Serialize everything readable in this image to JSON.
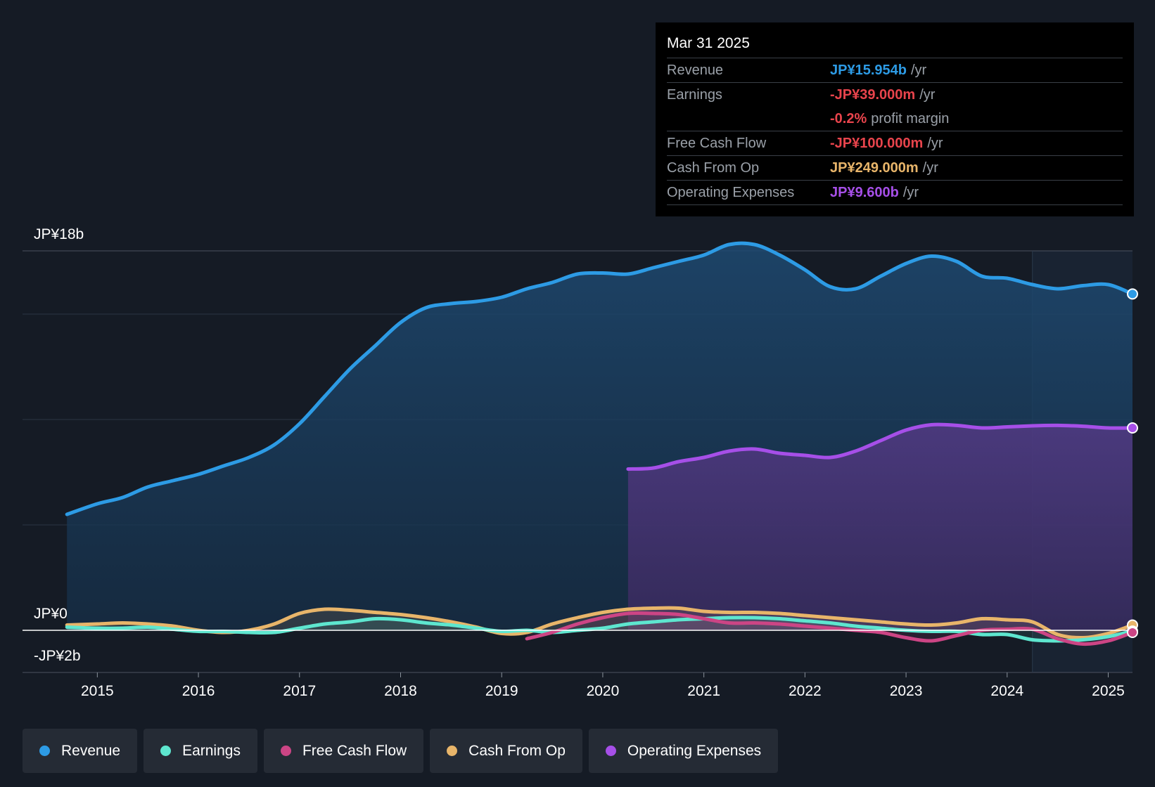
{
  "tooltip": {
    "date": "Mar 31 2025",
    "rows": [
      {
        "label": "Revenue",
        "value": "JP¥15.954b",
        "unit": "/yr",
        "color": "#2d9be5"
      },
      {
        "label": "Earnings",
        "value": "-JP¥39.000m",
        "unit": "/yr",
        "color": "#e8444c"
      },
      {
        "label": "",
        "value": "-0.2%",
        "unit": "profit margin",
        "color": "#e8444c"
      },
      {
        "label": "Free Cash Flow",
        "value": "-JP¥100.000m",
        "unit": "/yr",
        "color": "#e8444c"
      },
      {
        "label": "Cash From Op",
        "value": "JP¥249.000m",
        "unit": "/yr",
        "color": "#e8b56a"
      },
      {
        "label": "Operating Expenses",
        "value": "JP¥9.600b",
        "unit": "/yr",
        "color": "#a64fe8"
      }
    ]
  },
  "legend": [
    {
      "label": "Revenue",
      "color": "#2d9be5"
    },
    {
      "label": "Earnings",
      "color": "#5ee6cf"
    },
    {
      "label": "Free Cash Flow",
      "color": "#cc4585"
    },
    {
      "label": "Cash From Op",
      "color": "#e8b56a"
    },
    {
      "label": "Operating Expenses",
      "color": "#a64fe8"
    }
  ],
  "chart_data": {
    "type": "area",
    "title": "",
    "y_tick_labels": [
      "JP¥18b",
      "JP¥0",
      "-JP¥2b"
    ],
    "ylim": [
      -2,
      18
    ],
    "xlim": [
      2014.26,
      2025.24
    ],
    "x_tick_labels": [
      "2015",
      "2016",
      "2017",
      "2018",
      "2019",
      "2020",
      "2021",
      "2022",
      "2023",
      "2024",
      "2025"
    ],
    "highlight_start": 2024.25,
    "series": [
      {
        "name": "Revenue",
        "color": "#2d9be5",
        "fill": true,
        "x": [
          2014.7,
          2015.0,
          2015.25,
          2015.5,
          2015.75,
          2016.0,
          2016.25,
          2016.5,
          2016.75,
          2017.0,
          2017.25,
          2017.5,
          2017.75,
          2018.0,
          2018.25,
          2018.5,
          2018.75,
          2019.0,
          2019.25,
          2019.5,
          2019.75,
          2020.0,
          2020.25,
          2020.5,
          2020.75,
          2021.0,
          2021.25,
          2021.5,
          2021.75,
          2022.0,
          2022.25,
          2022.5,
          2022.75,
          2023.0,
          2023.25,
          2023.5,
          2023.75,
          2024.0,
          2024.25,
          2024.5,
          2024.75,
          2025.0,
          2025.24
        ],
        "values": [
          5.5,
          6.0,
          6.3,
          6.8,
          7.1,
          7.4,
          7.8,
          8.2,
          8.8,
          9.8,
          11.1,
          12.4,
          13.5,
          14.6,
          15.3,
          15.5,
          15.6,
          15.8,
          16.2,
          16.5,
          16.9,
          16.95,
          16.9,
          17.2,
          17.5,
          17.8,
          18.3,
          18.3,
          17.8,
          17.1,
          16.3,
          16.2,
          16.8,
          17.4,
          17.75,
          17.5,
          16.8,
          16.7,
          16.4,
          16.2,
          16.35,
          16.4,
          15.954
        ]
      },
      {
        "name": "Operating Expenses",
        "color": "#a64fe8",
        "fill": true,
        "x": [
          2020.25,
          2020.5,
          2020.75,
          2021.0,
          2021.25,
          2021.5,
          2021.75,
          2022.0,
          2022.25,
          2022.5,
          2022.75,
          2023.0,
          2023.25,
          2023.5,
          2023.75,
          2024.0,
          2024.25,
          2024.5,
          2024.75,
          2025.0,
          2025.24
        ],
        "values": [
          7.65,
          7.7,
          8.0,
          8.2,
          8.5,
          8.6,
          8.4,
          8.3,
          8.2,
          8.5,
          9.0,
          9.5,
          9.75,
          9.72,
          9.6,
          9.65,
          9.7,
          9.72,
          9.68,
          9.6,
          9.6
        ]
      },
      {
        "name": "Cash From Op",
        "color": "#e8b56a",
        "fill": true,
        "x": [
          2014.7,
          2015.0,
          2015.25,
          2015.5,
          2015.75,
          2016.0,
          2016.25,
          2016.5,
          2016.75,
          2017.0,
          2017.25,
          2017.5,
          2017.75,
          2018.0,
          2018.25,
          2018.5,
          2018.75,
          2019.0,
          2019.25,
          2019.5,
          2019.75,
          2020.0,
          2020.25,
          2020.5,
          2020.75,
          2021.0,
          2021.25,
          2021.5,
          2021.75,
          2022.0,
          2022.25,
          2022.5,
          2022.75,
          2023.0,
          2023.25,
          2023.5,
          2023.75,
          2024.0,
          2024.25,
          2024.5,
          2024.75,
          2025.0,
          2025.24
        ],
        "values": [
          0.25,
          0.3,
          0.35,
          0.3,
          0.2,
          0.0,
          -0.1,
          0.0,
          0.3,
          0.8,
          1.0,
          0.95,
          0.85,
          0.75,
          0.6,
          0.4,
          0.15,
          -0.15,
          -0.1,
          0.3,
          0.6,
          0.85,
          1.0,
          1.05,
          1.05,
          0.9,
          0.85,
          0.85,
          0.8,
          0.7,
          0.6,
          0.5,
          0.4,
          0.3,
          0.25,
          0.35,
          0.55,
          0.5,
          0.4,
          -0.2,
          -0.35,
          -0.15,
          0.249
        ]
      },
      {
        "name": "Earnings",
        "color": "#5ee6cf",
        "fill": true,
        "x": [
          2014.7,
          2015.0,
          2015.25,
          2015.5,
          2015.75,
          2016.0,
          2016.25,
          2016.5,
          2016.75,
          2017.0,
          2017.25,
          2017.5,
          2017.75,
          2018.0,
          2018.25,
          2018.5,
          2018.75,
          2019.0,
          2019.25,
          2019.5,
          2019.75,
          2020.0,
          2020.25,
          2020.5,
          2020.75,
          2021.0,
          2021.25,
          2021.5,
          2021.75,
          2022.0,
          2022.25,
          2022.5,
          2022.75,
          2023.0,
          2023.25,
          2023.5,
          2023.75,
          2024.0,
          2024.25,
          2024.5,
          2024.75,
          2025.0,
          2025.24
        ],
        "values": [
          0.15,
          0.1,
          0.1,
          0.15,
          0.05,
          -0.05,
          -0.05,
          -0.1,
          -0.1,
          0.1,
          0.3,
          0.4,
          0.55,
          0.5,
          0.35,
          0.25,
          0.1,
          -0.05,
          0.0,
          -0.1,
          0.0,
          0.1,
          0.3,
          0.4,
          0.5,
          0.55,
          0.6,
          0.6,
          0.55,
          0.45,
          0.35,
          0.2,
          0.1,
          0.0,
          -0.05,
          -0.05,
          -0.2,
          -0.2,
          -0.45,
          -0.5,
          -0.45,
          -0.3,
          -0.039
        ]
      },
      {
        "name": "Free Cash Flow",
        "color": "#cc4585",
        "fill": true,
        "x": [
          2019.25,
          2019.5,
          2019.75,
          2020.0,
          2020.25,
          2020.5,
          2020.75,
          2021.0,
          2021.25,
          2021.5,
          2021.75,
          2022.0,
          2022.25,
          2022.5,
          2022.75,
          2023.0,
          2023.25,
          2023.5,
          2023.75,
          2024.0,
          2024.25,
          2024.5,
          2024.75,
          2025.0,
          2025.24
        ],
        "values": [
          -0.4,
          -0.1,
          0.3,
          0.6,
          0.8,
          0.8,
          0.75,
          0.55,
          0.35,
          0.35,
          0.3,
          0.2,
          0.1,
          0.0,
          -0.1,
          -0.35,
          -0.5,
          -0.25,
          0.0,
          0.05,
          0.05,
          -0.4,
          -0.65,
          -0.5,
          -0.1
        ]
      }
    ]
  }
}
